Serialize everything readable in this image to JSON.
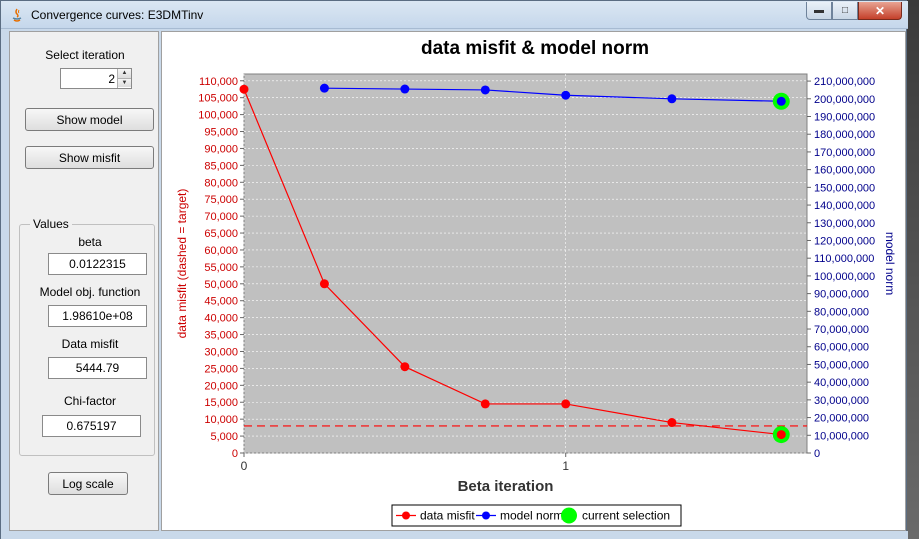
{
  "window": {
    "title": "Convergence curves: E3DMTinv",
    "controls": [
      "minimize",
      "maximize",
      "close"
    ]
  },
  "left_panel": {
    "select_iteration_label": "Select iteration",
    "iteration_value": "2",
    "show_model_label": "Show model",
    "show_misfit_label": "Show misfit",
    "values_group_title": "Values",
    "beta_label": "beta",
    "beta_value": "0.0122315",
    "model_obj_label": "Model obj. function",
    "model_obj_value": "1.98610e+08",
    "data_misfit_label": "Data misfit",
    "data_misfit_value": "5444.79",
    "chi_factor_label": "Chi-factor",
    "chi_factor_value": "0.675197",
    "log_scale_label": "Log scale"
  },
  "chart_data": {
    "type": "line",
    "title": "data misfit & model norm",
    "xlabel": "Beta iteration",
    "ylabel_left": "data misfit (dashed = target)",
    "ylabel_right": "model norm",
    "xlim": [
      0,
      1.75
    ],
    "x_ticks": [
      0,
      1
    ],
    "x_tick_labels": [
      "0",
      "1"
    ],
    "ylim_left": [
      0,
      112000
    ],
    "ylim_right": [
      0,
      214000000
    ],
    "left_ticks": [
      0,
      5000,
      10000,
      15000,
      20000,
      25000,
      30000,
      35000,
      40000,
      45000,
      50000,
      55000,
      60000,
      65000,
      70000,
      75000,
      80000,
      85000,
      90000,
      95000,
      100000,
      105000,
      110000
    ],
    "left_tick_labels": [
      "0",
      "5,000",
      "10,000",
      "15,000",
      "20,000",
      "25,000",
      "30,000",
      "35,000",
      "40,000",
      "45,000",
      "50,000",
      "55,000",
      "60,000",
      "65,000",
      "70,000",
      "75,000",
      "80,000",
      "85,000",
      "90,000",
      "95,000",
      "100,000",
      "105,000",
      "110,000"
    ],
    "right_ticks": [
      0,
      10000000,
      20000000,
      30000000,
      40000000,
      50000000,
      60000000,
      70000000,
      80000000,
      90000000,
      100000000,
      110000000,
      120000000,
      130000000,
      140000000,
      150000000,
      160000000,
      170000000,
      180000000,
      190000000,
      200000000,
      210000000
    ],
    "right_tick_labels": [
      "0",
      "10,000,000",
      "20,000,000",
      "30,000,000",
      "40,000,000",
      "50,000,000",
      "60,000,000",
      "70,000,000",
      "80,000,000",
      "90,000,000",
      "100,000,000",
      "110,000,000",
      "120,000,000",
      "130,000,000",
      "140,000,000",
      "150,000,000",
      "160,000,000",
      "170,000,000",
      "180,000,000",
      "190,000,000",
      "200,000,000",
      "210,000,000"
    ],
    "target_misfit": 8000,
    "series": [
      {
        "name": "data misfit",
        "axis": "left",
        "color": "#ff0000",
        "x": [
          0,
          0.25,
          0.5,
          0.75,
          1.0,
          1.33,
          1.67
        ],
        "y": [
          107500,
          50000,
          25500,
          14500,
          14500,
          9000,
          5444.79
        ]
      },
      {
        "name": "model norm",
        "axis": "right",
        "color": "#0000ff",
        "x": [
          0.25,
          0.5,
          0.75,
          1.0,
          1.33,
          1.67
        ],
        "y": [
          206000000,
          205500000,
          205000000,
          202000000,
          200000000,
          198610000
        ]
      }
    ],
    "selection": {
      "name": "current selection",
      "color": "#00ff00",
      "x": 1.67,
      "misfit": 5444.79,
      "model_norm": 198610000
    },
    "legend": [
      "data misfit",
      "model norm",
      "current selection"
    ],
    "legend_position": "bottom-center",
    "grid": true,
    "colors": {
      "left_axis": "#cc0000",
      "right_axis": "#00008b",
      "plot_bg": "#c0c0c0"
    }
  }
}
